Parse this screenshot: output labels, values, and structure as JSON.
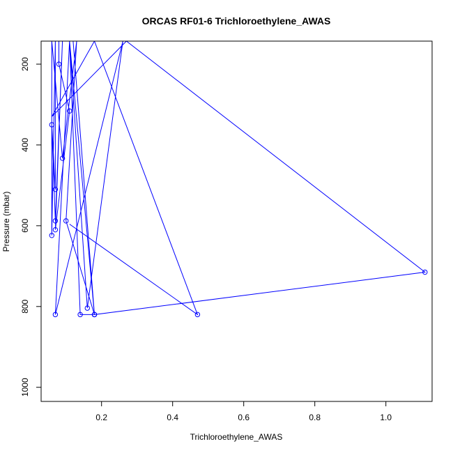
{
  "chart_data": {
    "type": "line",
    "title": "ORCAS RF01-6 Trichloroethylene_AWAS",
    "xlabel": "Trichloroethylene_AWAS",
    "ylabel": "Pressure (mbar)",
    "xlim": [
      0.03,
      1.13
    ],
    "ylim": [
      1035,
      143
    ],
    "y_reversed": true,
    "x_ticks": [
      0.2,
      0.4,
      0.6,
      0.8,
      1.0
    ],
    "x_tick_labels": [
      "0.2",
      "0.4",
      "0.6",
      "0.8",
      "1.0"
    ],
    "y_ticks": [
      200,
      400,
      600,
      800,
      1000
    ],
    "y_tick_labels": [
      "200",
      "400",
      "600",
      "800",
      "1000"
    ],
    "grid": false,
    "color": "#0000ff",
    "points": [
      {
        "x": 0.08,
        "y": 143,
        "marker": false
      },
      {
        "x": 0.08,
        "y": 200,
        "marker": true
      },
      {
        "x": 0.11,
        "y": 316,
        "marker": true
      },
      {
        "x": 0.07,
        "y": 610,
        "marker": true
      },
      {
        "x": 0.09,
        "y": 143,
        "marker": false
      },
      {
        "x": 0.07,
        "y": 588,
        "marker": true
      },
      {
        "x": 0.06,
        "y": 350,
        "marker": true
      },
      {
        "x": 0.07,
        "y": 510,
        "marker": true
      },
      {
        "x": 0.07,
        "y": 143,
        "marker": false
      },
      {
        "x": 0.06,
        "y": 624,
        "marker": true
      },
      {
        "x": 0.06,
        "y": 143,
        "marker": false
      },
      {
        "x": 0.09,
        "y": 433,
        "marker": true
      },
      {
        "x": 0.13,
        "y": 143,
        "marker": false
      },
      {
        "x": 0.1,
        "y": 588,
        "marker": true
      },
      {
        "x": 0.18,
        "y": 820,
        "marker": true
      },
      {
        "x": 0.11,
        "y": 143,
        "marker": false
      },
      {
        "x": 0.07,
        "y": 820,
        "marker": true
      },
      {
        "x": 0.26,
        "y": 143,
        "marker": false
      },
      {
        "x": 0.16,
        "y": 804,
        "marker": true
      },
      {
        "x": 0.11,
        "y": 143,
        "marker": false
      },
      {
        "x": 0.14,
        "y": 820,
        "marker": true
      },
      {
        "x": 0.18,
        "y": 820,
        "marker": true
      },
      {
        "x": 0.12,
        "y": 143,
        "marker": false
      },
      {
        "x": 0.18,
        "y": 820,
        "marker": true
      },
      {
        "x": 1.11,
        "y": 715,
        "marker": true
      },
      {
        "x": 0.27,
        "y": 143,
        "marker": false
      },
      {
        "x": 0.06,
        "y": 330,
        "marker": false
      },
      {
        "x": 0.06,
        "y": 610,
        "marker": false
      },
      {
        "x": 0.06,
        "y": 330,
        "marker": false
      },
      {
        "x": 0.18,
        "y": 143,
        "marker": false
      },
      {
        "x": 0.47,
        "y": 820,
        "marker": true
      },
      {
        "x": 0.11,
        "y": 596,
        "marker": false
      }
    ]
  }
}
